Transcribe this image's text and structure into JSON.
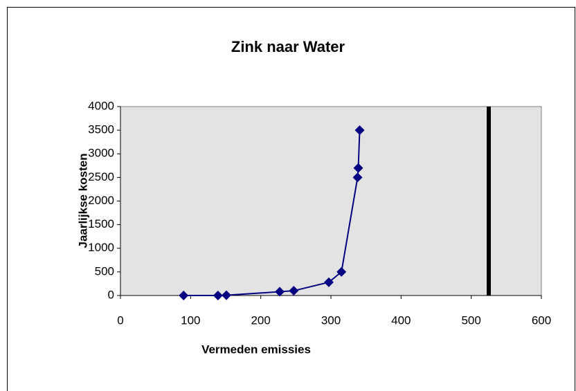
{
  "chart_data": {
    "type": "line",
    "title": "Zink naar Water",
    "xlabel": "Vermeden emissies",
    "ylabel": "Jaarlijkse kosten",
    "series": [
      {
        "color": "#000080",
        "x": [
          90,
          139,
          151,
          227,
          247,
          297,
          315,
          338,
          339,
          341
        ],
        "values": [
          0,
          0,
          5,
          80,
          100,
          280,
          500,
          2500,
          2700,
          3500
        ]
      }
    ],
    "reference_line": {
      "x": 525,
      "color": "#000000"
    },
    "xlim": [
      0,
      600
    ],
    "xticks": [
      0,
      100,
      200,
      300,
      400,
      500,
      600
    ],
    "ylim": [
      0,
      4000
    ],
    "yticks": [
      0,
      500,
      1000,
      1500,
      2000,
      2500,
      3000,
      3500,
      4000
    ],
    "plot_background": "#e3e3e3"
  }
}
